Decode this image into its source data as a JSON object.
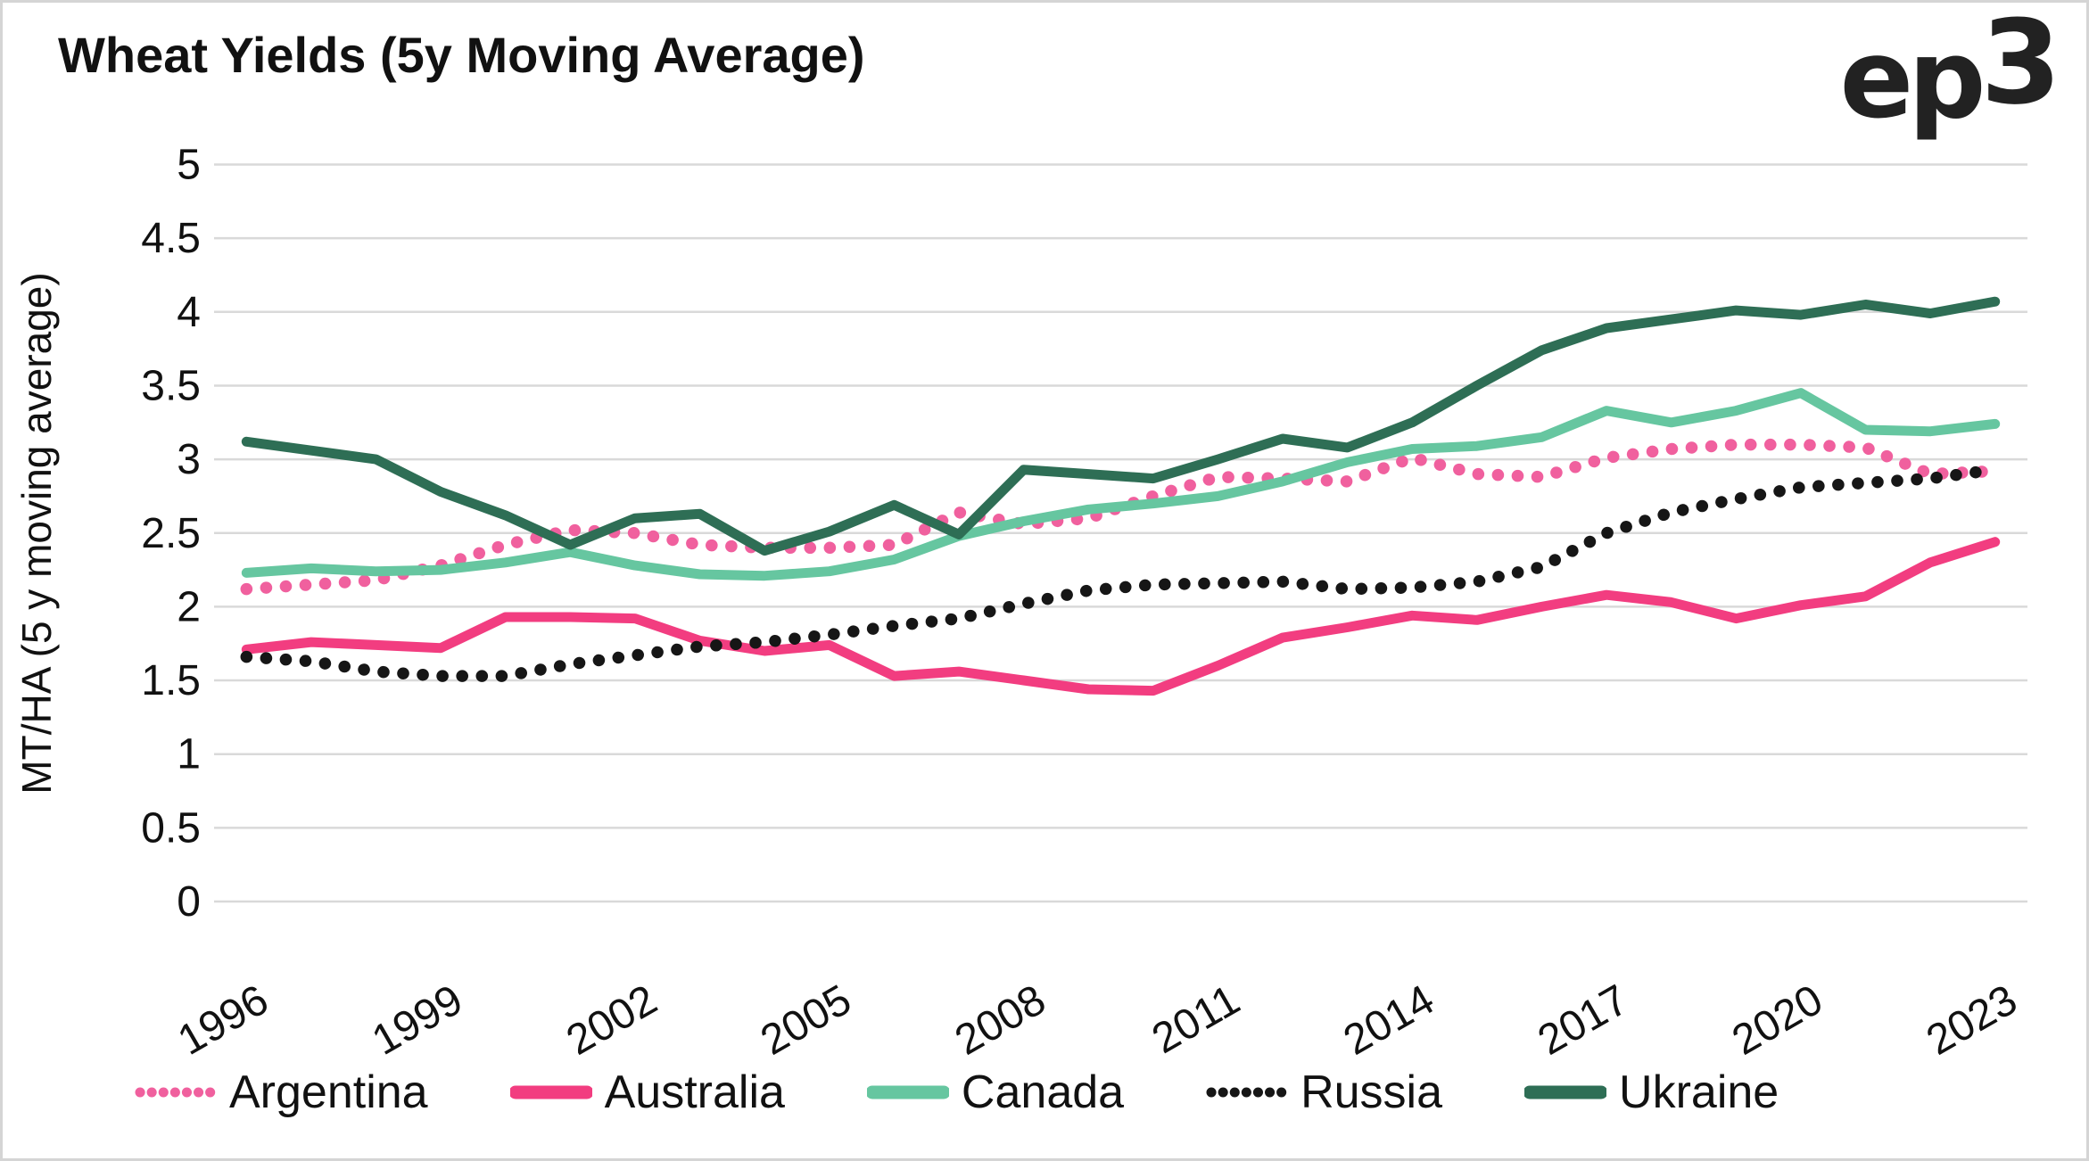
{
  "header": {
    "title": "Wheat Yields (5y Moving Average)",
    "logo_text": "ep3"
  },
  "chart_data": {
    "type": "line",
    "title": "Wheat Yields (5y Moving Average)",
    "xlabel": "",
    "ylabel": "MT/HA (5 y moving average)",
    "ylim": [
      0,
      5
    ],
    "ytick_step": 0.5,
    "ytick_labels": [
      "0",
      "0.5",
      "1",
      "1.5",
      "2",
      "2.5",
      "3",
      "3.5",
      "4",
      "4.5",
      "5"
    ],
    "grid": "horizontal",
    "gridline_color": "#d9d9d9",
    "legend_position": "bottom",
    "x": [
      1996,
      1997,
      1998,
      1999,
      2000,
      2001,
      2002,
      2003,
      2004,
      2005,
      2006,
      2007,
      2008,
      2009,
      2010,
      2011,
      2012,
      2013,
      2014,
      2015,
      2016,
      2017,
      2018,
      2019,
      2020,
      2021,
      2022,
      2023
    ],
    "xtick_labels": [
      "1996",
      "1999",
      "2002",
      "2005",
      "2008",
      "2011",
      "2014",
      "2017",
      "2020",
      "2023"
    ],
    "series": [
      {
        "name": "Argentina",
        "color": "#F0609E",
        "style": "dotted",
        "values": [
          2.12,
          2.15,
          2.18,
          2.28,
          2.42,
          2.52,
          2.5,
          2.42,
          2.4,
          2.4,
          2.42,
          2.64,
          2.56,
          2.6,
          2.75,
          2.88,
          2.87,
          2.85,
          3.01,
          2.9,
          2.88,
          3.01,
          3.07,
          3.1,
          3.1,
          3.08,
          2.9,
          2.92
        ]
      },
      {
        "name": "Australia",
        "color": "#F23D80",
        "style": "solid",
        "values": [
          1.71,
          1.76,
          1.74,
          1.72,
          1.93,
          1.93,
          1.92,
          1.77,
          1.7,
          1.74,
          1.53,
          1.56,
          1.5,
          1.44,
          1.43,
          1.6,
          1.79,
          1.86,
          1.94,
          1.91,
          2.0,
          2.08,
          2.03,
          1.92,
          2.01,
          2.07,
          2.3,
          2.44
        ]
      },
      {
        "name": "Canada",
        "color": "#66C6A0",
        "style": "solid",
        "values": [
          2.23,
          2.26,
          2.24,
          2.25,
          2.3,
          2.37,
          2.28,
          2.22,
          2.21,
          2.24,
          2.32,
          2.48,
          2.58,
          2.66,
          2.7,
          2.75,
          2.85,
          2.98,
          3.07,
          3.09,
          3.15,
          3.33,
          3.25,
          3.33,
          3.45,
          3.2,
          3.19,
          3.24
        ]
      },
      {
        "name": "Russia",
        "color": "#161616",
        "style": "dotted",
        "values": [
          1.66,
          1.63,
          1.56,
          1.53,
          1.53,
          1.61,
          1.67,
          1.73,
          1.76,
          1.81,
          1.87,
          1.92,
          2.02,
          2.11,
          2.15,
          2.16,
          2.17,
          2.12,
          2.13,
          2.17,
          2.27,
          2.5,
          2.64,
          2.73,
          2.81,
          2.84,
          2.87,
          2.93
        ]
      },
      {
        "name": "Ukraine",
        "color": "#2E6E55",
        "style": "solid",
        "values": [
          3.12,
          3.06,
          3.0,
          2.78,
          2.62,
          2.42,
          2.6,
          2.63,
          2.38,
          2.51,
          2.69,
          2.49,
          2.93,
          2.9,
          2.87,
          3.0,
          3.14,
          3.08,
          3.25,
          3.5,
          3.74,
          3.89,
          3.95,
          4.01,
          3.98,
          4.05,
          3.99,
          4.07
        ]
      }
    ]
  }
}
